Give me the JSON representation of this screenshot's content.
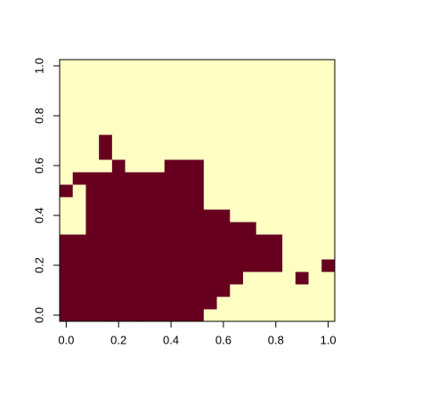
{
  "chart_data": {
    "type": "image",
    "x": [
      0,
      0.05,
      0.1,
      0.15,
      0.2,
      0.25,
      0.3,
      0.35,
      0.4,
      0.45,
      0.5,
      0.55,
      0.6,
      0.65,
      0.7,
      0.75,
      0.8,
      0.85,
      0.9,
      0.95,
      1
    ],
    "y": [
      0,
      0.05,
      0.1,
      0.15,
      0.2,
      0.25,
      0.3,
      0.35,
      0.4,
      0.45,
      0.5,
      0.55,
      0.6,
      0.65,
      0.7,
      0.75,
      0.8,
      0.85,
      0.9,
      0.95,
      1
    ],
    "z": [
      [
        1,
        1,
        1,
        1,
        1,
        1,
        1,
        1,
        1,
        1,
        1,
        0,
        0,
        0,
        0,
        0,
        0,
        0,
        0,
        0,
        0
      ],
      [
        1,
        1,
        1,
        1,
        1,
        1,
        1,
        1,
        1,
        1,
        1,
        1,
        0,
        0,
        0,
        0,
        0,
        0,
        0,
        0,
        0
      ],
      [
        1,
        1,
        1,
        1,
        1,
        1,
        1,
        1,
        1,
        1,
        1,
        1,
        1,
        0,
        0,
        0,
        0,
        0,
        0,
        0,
        0
      ],
      [
        1,
        1,
        1,
        1,
        1,
        1,
        1,
        1,
        1,
        1,
        1,
        1,
        1,
        1,
        0,
        0,
        0,
        0,
        1,
        0,
        0
      ],
      [
        1,
        1,
        1,
        1,
        1,
        1,
        1,
        1,
        1,
        1,
        1,
        1,
        1,
        1,
        1,
        1,
        1,
        0,
        0,
        0,
        1
      ],
      [
        1,
        1,
        1,
        1,
        1,
        1,
        1,
        1,
        1,
        1,
        1,
        1,
        1,
        1,
        1,
        1,
        1,
        0,
        0,
        0,
        0
      ],
      [
        1,
        1,
        1,
        1,
        1,
        1,
        1,
        1,
        1,
        1,
        1,
        1,
        1,
        1,
        1,
        1,
        1,
        0,
        0,
        0,
        0
      ],
      [
        0,
        0,
        1,
        1,
        1,
        1,
        1,
        1,
        1,
        1,
        1,
        1,
        1,
        1,
        1,
        0,
        0,
        0,
        0,
        0,
        0
      ],
      [
        0,
        0,
        1,
        1,
        1,
        1,
        1,
        1,
        1,
        1,
        1,
        1,
        1,
        0,
        0,
        0,
        0,
        0,
        0,
        0,
        0
      ],
      [
        0,
        0,
        1,
        1,
        1,
        1,
        1,
        1,
        1,
        1,
        1,
        0,
        0,
        0,
        0,
        0,
        0,
        0,
        0,
        0,
        0
      ],
      [
        1,
        0,
        1,
        1,
        1,
        1,
        1,
        1,
        1,
        1,
        1,
        0,
        0,
        0,
        0,
        0,
        0,
        0,
        0,
        0,
        0
      ],
      [
        0,
        1,
        1,
        1,
        1,
        1,
        1,
        1,
        1,
        1,
        1,
        0,
        0,
        0,
        0,
        0,
        0,
        0,
        0,
        0,
        0
      ],
      [
        0,
        0,
        0,
        0,
        1,
        0,
        0,
        0,
        1,
        1,
        1,
        0,
        0,
        0,
        0,
        0,
        0,
        0,
        0,
        0,
        0
      ],
      [
        0,
        0,
        0,
        1,
        0,
        0,
        0,
        0,
        0,
        0,
        0,
        0,
        0,
        0,
        0,
        0,
        0,
        0,
        0,
        0,
        0
      ],
      [
        0,
        0,
        0,
        1,
        0,
        0,
        0,
        0,
        0,
        0,
        0,
        0,
        0,
        0,
        0,
        0,
        0,
        0,
        0,
        0,
        0
      ],
      [
        0,
        0,
        0,
        0,
        0,
        0,
        0,
        0,
        0,
        0,
        0,
        0,
        0,
        0,
        0,
        0,
        0,
        0,
        0,
        0,
        0
      ],
      [
        0,
        0,
        0,
        0,
        0,
        0,
        0,
        0,
        0,
        0,
        0,
        0,
        0,
        0,
        0,
        0,
        0,
        0,
        0,
        0,
        0
      ],
      [
        0,
        0,
        0,
        0,
        0,
        0,
        0,
        0,
        0,
        0,
        0,
        0,
        0,
        0,
        0,
        0,
        0,
        0,
        0,
        0,
        0
      ],
      [
        0,
        0,
        0,
        0,
        0,
        0,
        0,
        0,
        0,
        0,
        0,
        0,
        0,
        0,
        0,
        0,
        0,
        0,
        0,
        0,
        0
      ],
      [
        0,
        0,
        0,
        0,
        0,
        0,
        0,
        0,
        0,
        0,
        0,
        0,
        0,
        0,
        0,
        0,
        0,
        0,
        0,
        0,
        0
      ],
      [
        0,
        0,
        0,
        0,
        0,
        0,
        0,
        0,
        0,
        0,
        0,
        0,
        0,
        0,
        0,
        0,
        0,
        0,
        0,
        0,
        0
      ]
    ],
    "colors": [
      "#ffffc4",
      "#67001f"
    ],
    "xlim": [
      -0.025,
      1.025
    ],
    "ylim": [
      -0.025,
      1.025
    ],
    "xticks": [
      {
        "value": 0,
        "label": "0.0"
      },
      {
        "value": 0.2,
        "label": "0.2"
      },
      {
        "value": 0.4,
        "label": "0.4"
      },
      {
        "value": 0.6,
        "label": "0.6"
      },
      {
        "value": 0.8,
        "label": "0.8"
      },
      {
        "value": 1,
        "label": "1.0"
      }
    ],
    "yticks": [
      {
        "value": 0,
        "label": "0.0"
      },
      {
        "value": 0.2,
        "label": "0.2"
      },
      {
        "value": 0.4,
        "label": "0.4"
      },
      {
        "value": 0.6,
        "label": "0.6"
      },
      {
        "value": 0.8,
        "label": "0.8"
      },
      {
        "value": 1,
        "label": "1.0"
      }
    ]
  }
}
